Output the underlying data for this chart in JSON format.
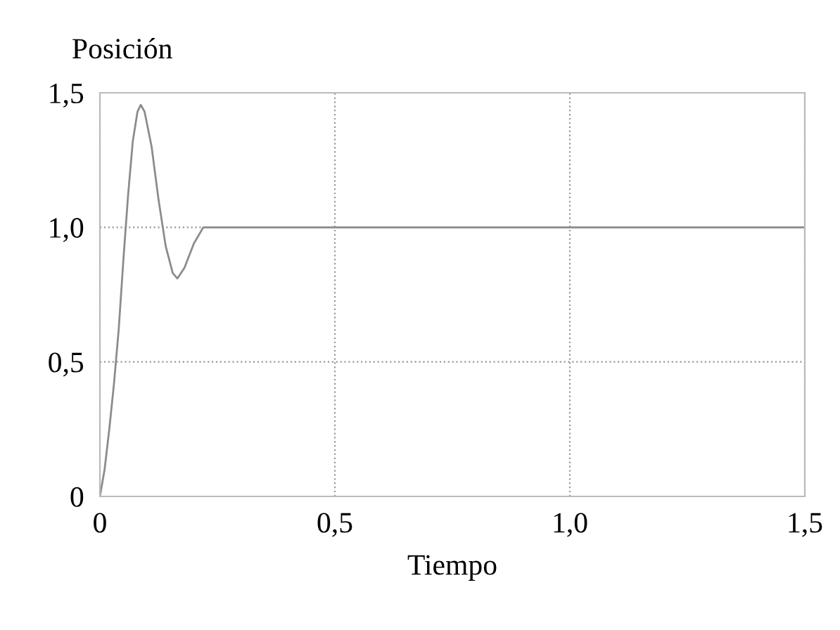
{
  "chart_data": {
    "type": "line",
    "xlabel": "Tiempo",
    "ylabel": "Posición",
    "series": [
      {
        "color": "#8c8c8c",
        "x": [
          0,
          0.01,
          0.02,
          0.03,
          0.04,
          0.05,
          0.06,
          0.07,
          0.08,
          0.087,
          0.095,
          0.11,
          0.125,
          0.14,
          0.155,
          0.165,
          0.18,
          0.2,
          0.22,
          0.25,
          1.5
        ],
        "values": [
          0,
          0.1,
          0.25,
          0.42,
          0.62,
          0.88,
          1.12,
          1.32,
          1.43,
          1.455,
          1.43,
          1.3,
          1.1,
          0.93,
          0.83,
          0.81,
          0.85,
          0.94,
          1.0,
          1.0,
          1.0
        ]
      }
    ],
    "xlim": [
      0,
      1.5
    ],
    "ylim": [
      0,
      1.5
    ],
    "xticks": [
      {
        "value": 0,
        "label": "0"
      },
      {
        "value": 0.5,
        "label": "0,5"
      },
      {
        "value": 1.0,
        "label": "1,0"
      },
      {
        "value": 1.5,
        "label": "1,5"
      }
    ],
    "yticks": [
      {
        "value": 0,
        "label": "0"
      },
      {
        "value": 0.5,
        "label": "0,5"
      },
      {
        "value": 1.0,
        "label": "1,0"
      },
      {
        "value": 1.5,
        "label": "1,5"
      }
    ],
    "grid": true,
    "line_style": "solid",
    "marker": "none",
    "legend": false
  }
}
